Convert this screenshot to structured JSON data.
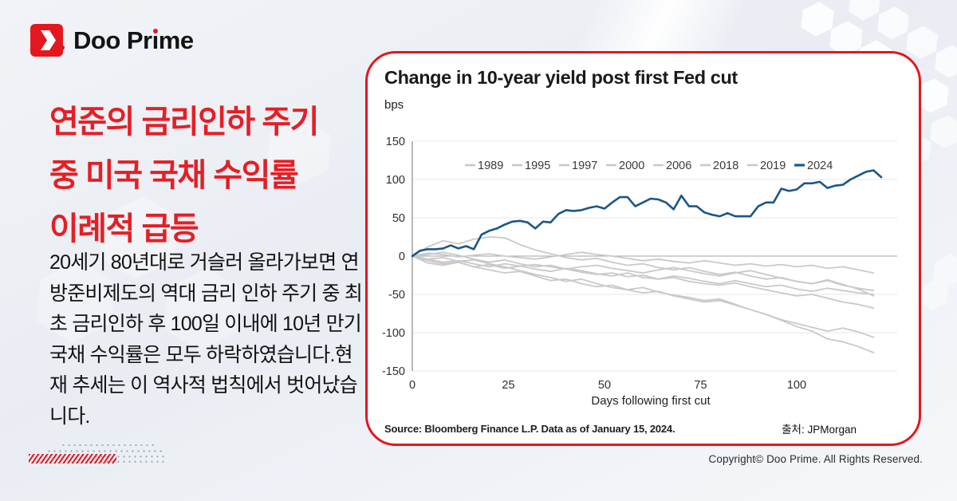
{
  "logo": {
    "text": "Doo Pr",
    "text_i": "ı",
    "text_tail": "me"
  },
  "headline": {
    "line1": "연준의 금리인하 주기",
    "line2": "중 미국 국채 수익률",
    "line3": "이례적 급등"
  },
  "body_text": "20세기 80년대로 거슬러 올라가보면 연방준비제도의 역대 금리 인하 주기 중 최초 금리인하 후 100일 이내에 10년 만기 국채 수익률은 모두 하락하였습니다.현재 추세는 이 역사적 법칙에서 벗어났습니다.",
  "card": {
    "title": "Change in 10-year yield post first Fed cut",
    "unit": "bps",
    "source": "Source: Bloomberg Finance L.P. Data as of January 15, 2024.",
    "attribution": "출처:  JPMorgan"
  },
  "copyright": "Copyright© Doo Prime. All Rights Reserved.",
  "colors": {
    "accent_red": "#e4171f",
    "headline_red": "#e41f26",
    "line_blue": "#1c5687",
    "line_gray": "#c9c9c9"
  },
  "chart_data": {
    "type": "line",
    "title": "Change in 10-year yield post first Fed cut",
    "ylabel": "bps",
    "xlabel": "Days following first cut",
    "xlim": [
      0,
      122
    ],
    "ylim": [
      -150,
      150
    ],
    "yticks": [
      150,
      100,
      50,
      0,
      -50,
      -100,
      -150
    ],
    "xticks": [
      0,
      25,
      50,
      75,
      100
    ],
    "grid": "horizontal",
    "legend_position": "top-inside",
    "series": [
      {
        "name": "1989",
        "color": "#c9c9c9",
        "width": 1.8,
        "dx": 4,
        "y": [
          0,
          -4,
          -8,
          -6,
          -10,
          -14,
          -10,
          -13,
          -17,
          -20,
          -16,
          -19,
          -23,
          -26,
          -22,
          -28,
          -30,
          -26,
          -29,
          -33,
          -36,
          -32,
          -36,
          -40,
          -38,
          -43,
          -46,
          -42,
          -45,
          -48,
          -50
        ]
      },
      {
        "name": "1995",
        "color": "#c9c9c9",
        "width": 1.8,
        "dx": 4,
        "y": [
          0,
          4,
          2,
          -1,
          1,
          3,
          0,
          -2,
          -4,
          -1,
          2,
          5,
          2,
          0,
          -3,
          -6,
          -4,
          -7,
          -9,
          -6,
          -9,
          -12,
          -10,
          -13,
          -11,
          -14,
          -12,
          -16,
          -14,
          -18,
          -22
        ]
      },
      {
        "name": "1997",
        "color": "#c9c9c9",
        "width": 1.8,
        "dx": 4,
        "y": [
          0,
          12,
          20,
          16,
          22,
          25,
          24,
          15,
          8,
          3,
          -2,
          -5,
          -3,
          -8,
          -12,
          -10,
          -15,
          -18,
          -15,
          -20,
          -24,
          -21,
          -26,
          -30,
          -28,
          -33,
          -36,
          -32,
          -38,
          -42,
          -45
        ]
      },
      {
        "name": "2000",
        "color": "#c9c9c9",
        "width": 1.8,
        "dx": 4,
        "y": [
          0,
          -6,
          -10,
          -8,
          -14,
          -18,
          -22,
          -20,
          -26,
          -32,
          -30,
          -36,
          -40,
          -38,
          -44,
          -48,
          -46,
          -52,
          -56,
          -60,
          -58,
          -64,
          -70,
          -76,
          -84,
          -92,
          -98,
          -108,
          -112,
          -118,
          -126
        ]
      },
      {
        "name": "2006",
        "color": "#c9c9c9",
        "width": 1.8,
        "dx": 4,
        "y": [
          0,
          2,
          5,
          1,
          -4,
          -8,
          -5,
          -10,
          -14,
          -12,
          -17,
          -21,
          -24,
          -22,
          -27,
          -25,
          -30,
          -28,
          -33,
          -36,
          -38,
          -35,
          -40,
          -44,
          -48,
          -52,
          -50,
          -55,
          -60,
          -63,
          -68
        ]
      },
      {
        "name": "2018",
        "color": "#c9c9c9",
        "width": 1.8,
        "dx": 4,
        "y": [
          0,
          -9,
          -12,
          -8,
          -14,
          -11,
          -16,
          -13,
          -11,
          -14,
          -17,
          -14,
          -12,
          -16,
          -19,
          -22,
          -18,
          -15,
          -19,
          -23,
          -26,
          -22,
          -19,
          -24,
          -29,
          -33,
          -36,
          -31,
          -37,
          -43,
          -52
        ]
      },
      {
        "name": "2019",
        "color": "#c9c9c9",
        "width": 1.8,
        "dx": 4,
        "y": [
          0,
          -4,
          -2,
          -7,
          -5,
          -10,
          -14,
          -19,
          -24,
          -28,
          -33,
          -30,
          -36,
          -41,
          -44,
          -41,
          -47,
          -51,
          -54,
          -58,
          -56,
          -63,
          -70,
          -76,
          -83,
          -88,
          -93,
          -98,
          -94,
          -99,
          -106
        ]
      },
      {
        "name": "2024",
        "color": "#1c5687",
        "width": 2.6,
        "dx": 2,
        "y": [
          0,
          7,
          9,
          9,
          10,
          14,
          10,
          13,
          9,
          28,
          33,
          36,
          41,
          45,
          46,
          44,
          36,
          45,
          44,
          55,
          60,
          59,
          60,
          63,
          65,
          62,
          70,
          77,
          77,
          65,
          70,
          75,
          74,
          70,
          61,
          79,
          65,
          65,
          57,
          54,
          52,
          56,
          52,
          52,
          52,
          65,
          70,
          70,
          88,
          85,
          87,
          95,
          95,
          97,
          89,
          92,
          93,
          100,
          105,
          110,
          112,
          103
        ]
      }
    ]
  }
}
